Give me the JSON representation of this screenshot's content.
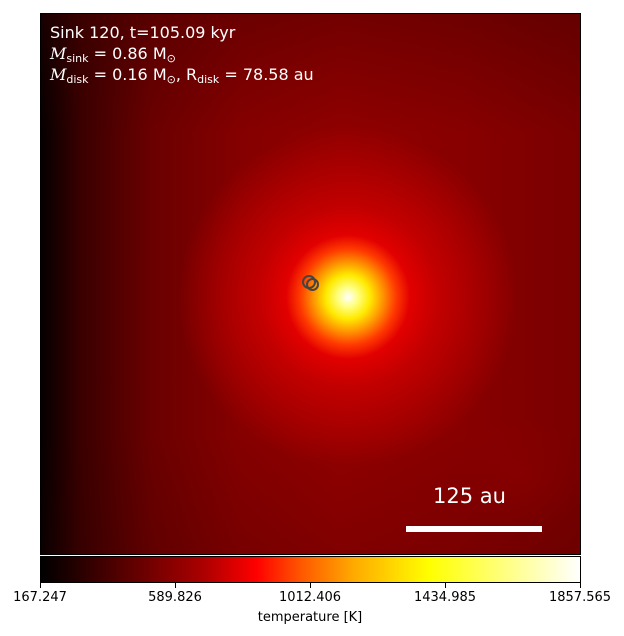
{
  "annotation": {
    "line1": "Sink 120, t=105.09 kyr",
    "sink_mass_symbol": "M",
    "sink_mass_sub": "sink",
    "sink_mass_value": " = 0.86 M",
    "sun_symbol": "⊙",
    "disk_mass_symbol": "M",
    "disk_mass_sub": "disk",
    "disk_mass_value": " = 0.16 M",
    "disk_radius_prefix": ", R",
    "disk_radius_sub": "disk",
    "disk_radius_value": " = 78.58 au"
  },
  "scale_bar": {
    "label": "125 au"
  },
  "colorbar": {
    "label": "temperature [K]",
    "ticks": [
      "167.247",
      "589.826",
      "1012.406",
      "1434.985",
      "1857.565"
    ],
    "colors": [
      "#000000",
      "#ff0000",
      "#ffff00",
      "#ffffff"
    ]
  }
}
